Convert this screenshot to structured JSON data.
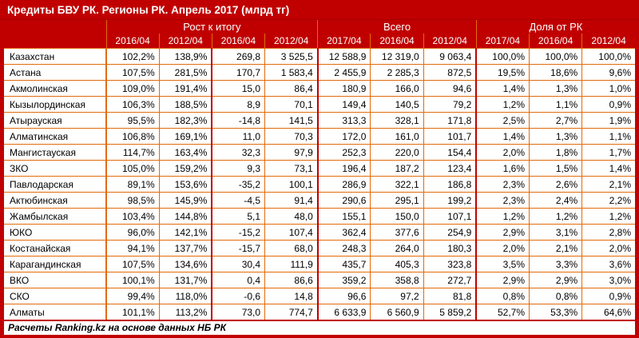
{
  "title": "Кредиты БВУ РК. Регионы РК. Апрель 2017 (млрд тг)",
  "colors": {
    "background_red": "#C00000",
    "border_orange": "#E26B0A",
    "cell_background": "#FFFFFF",
    "header_text": "#FFFFFF",
    "body_text": "#000000"
  },
  "chart_data": {
    "type": "table",
    "title": "Кредиты БВУ РК. Регионы РК. Апрель 2017 (млрд тг)",
    "column_groups": [
      {
        "label": "Рост к итогу",
        "span": 4
      },
      {
        "label": "Всего",
        "span": 3
      },
      {
        "label": "Доля от РК",
        "span": 3
      }
    ],
    "sub_columns": [
      "2016/04",
      "2012/04",
      "2016/04",
      "2012/04",
      "2017/04",
      "2016/04",
      "2012/04",
      "2017/04",
      "2016/04",
      "2012/04"
    ],
    "rows": [
      {
        "region": "Казахстан",
        "values": [
          "102,2%",
          "138,9%",
          "269,8",
          "3 525,5",
          "12 588,9",
          "12 319,0",
          "9 063,4",
          "100,0%",
          "100,0%",
          "100,0%"
        ]
      },
      {
        "region": "Астана",
        "values": [
          "107,5%",
          "281,5%",
          "170,7",
          "1 583,4",
          "2 455,9",
          "2 285,3",
          "872,5",
          "19,5%",
          "18,6%",
          "9,6%"
        ]
      },
      {
        "region": "Акмолинская",
        "values": [
          "109,0%",
          "191,4%",
          "15,0",
          "86,4",
          "180,9",
          "166,0",
          "94,6",
          "1,4%",
          "1,3%",
          "1,0%"
        ]
      },
      {
        "region": "Кызылординская",
        "values": [
          "106,3%",
          "188,5%",
          "8,9",
          "70,1",
          "149,4",
          "140,5",
          "79,2",
          "1,2%",
          "1,1%",
          "0,9%"
        ]
      },
      {
        "region": "Атырауская",
        "values": [
          "95,5%",
          "182,3%",
          "-14,8",
          "141,5",
          "313,3",
          "328,1",
          "171,8",
          "2,5%",
          "2,7%",
          "1,9%"
        ]
      },
      {
        "region": "Алматинская",
        "values": [
          "106,8%",
          "169,1%",
          "11,0",
          "70,3",
          "172,0",
          "161,0",
          "101,7",
          "1,4%",
          "1,3%",
          "1,1%"
        ]
      },
      {
        "region": "Мангистауская",
        "values": [
          "114,7%",
          "163,4%",
          "32,3",
          "97,9",
          "252,3",
          "220,0",
          "154,4",
          "2,0%",
          "1,8%",
          "1,7%"
        ]
      },
      {
        "region": "ЗКО",
        "values": [
          "105,0%",
          "159,2%",
          "9,3",
          "73,1",
          "196,4",
          "187,2",
          "123,4",
          "1,6%",
          "1,5%",
          "1,4%"
        ]
      },
      {
        "region": "Павлодарская",
        "values": [
          "89,1%",
          "153,6%",
          "-35,2",
          "100,1",
          "286,9",
          "322,1",
          "186,8",
          "2,3%",
          "2,6%",
          "2,1%"
        ]
      },
      {
        "region": "Актюбинская",
        "values": [
          "98,5%",
          "145,9%",
          "-4,5",
          "91,4",
          "290,6",
          "295,1",
          "199,2",
          "2,3%",
          "2,4%",
          "2,2%"
        ]
      },
      {
        "region": "Жамбылская",
        "values": [
          "103,4%",
          "144,8%",
          "5,1",
          "48,0",
          "155,1",
          "150,0",
          "107,1",
          "1,2%",
          "1,2%",
          "1,2%"
        ]
      },
      {
        "region": "ЮКО",
        "values": [
          "96,0%",
          "142,1%",
          "-15,2",
          "107,4",
          "362,4",
          "377,6",
          "254,9",
          "2,9%",
          "3,1%",
          "2,8%"
        ]
      },
      {
        "region": "Костанайская",
        "values": [
          "94,1%",
          "137,7%",
          "-15,7",
          "68,0",
          "248,3",
          "264,0",
          "180,3",
          "2,0%",
          "2,1%",
          "2,0%"
        ]
      },
      {
        "region": "Карагандинская",
        "values": [
          "107,5%",
          "134,6%",
          "30,4",
          "111,9",
          "435,7",
          "405,3",
          "323,8",
          "3,5%",
          "3,3%",
          "3,6%"
        ]
      },
      {
        "region": "ВКО",
        "values": [
          "100,1%",
          "131,7%",
          "0,4",
          "86,6",
          "359,2",
          "358,8",
          "272,7",
          "2,9%",
          "2,9%",
          "3,0%"
        ]
      },
      {
        "region": "СКО",
        "values": [
          "99,4%",
          "118,0%",
          "-0,6",
          "14,8",
          "96,6",
          "97,2",
          "81,8",
          "0,8%",
          "0,8%",
          "0,9%"
        ]
      },
      {
        "region": "Алматы",
        "values": [
          "101,1%",
          "113,2%",
          "73,0",
          "774,7",
          "6 633,9",
          "6 560,9",
          "5 859,2",
          "52,7%",
          "53,3%",
          "64,6%"
        ]
      }
    ],
    "source": "Расчеты Ranking.kz на основе данных НБ РК"
  }
}
